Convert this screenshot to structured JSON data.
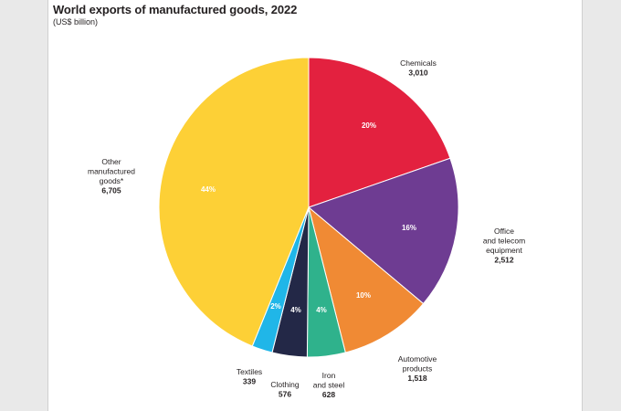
{
  "title": "World exports of manufactured goods, 2022",
  "subtitle": "(US$ billion)",
  "chart_data": {
    "type": "pie",
    "title": "World exports of manufactured goods, 2022",
    "subtitle": "(US$ billion)",
    "start_angle_deg": 0,
    "direction": "clockwise",
    "slices": [
      {
        "id": "chemicals",
        "label_lines": [
          "Chemicals"
        ],
        "value_text": "3,010",
        "value": 3010,
        "percent_text": "20%",
        "color": "#e3213f"
      },
      {
        "id": "office-telecom",
        "label_lines": [
          "Office",
          "and telecom",
          "equipment"
        ],
        "value_text": "2,512",
        "value": 2512,
        "percent_text": "16%",
        "color": "#6e3c92"
      },
      {
        "id": "automotive",
        "label_lines": [
          "Automotive",
          "products"
        ],
        "value_text": "1,518",
        "value": 1518,
        "percent_text": "10%",
        "color": "#f08a34"
      },
      {
        "id": "iron-steel",
        "label_lines": [
          "Iron",
          "and steel"
        ],
        "value_text": "628",
        "value": 628,
        "percent_text": "4%",
        "color": "#2fb28c"
      },
      {
        "id": "clothing",
        "label_lines": [
          "Clothing"
        ],
        "value_text": "576",
        "value": 576,
        "percent_text": "4%",
        "color": "#232847"
      },
      {
        "id": "textiles",
        "label_lines": [
          "Textiles"
        ],
        "value_text": "339",
        "value": 339,
        "percent_text": "2%",
        "color": "#20b6e8"
      },
      {
        "id": "other",
        "label_lines": [
          "Other",
          "manufactured",
          "goods*"
        ],
        "value_text": "6,705",
        "value": 6705,
        "percent_text": "44%",
        "color": "#fdd036"
      }
    ]
  }
}
